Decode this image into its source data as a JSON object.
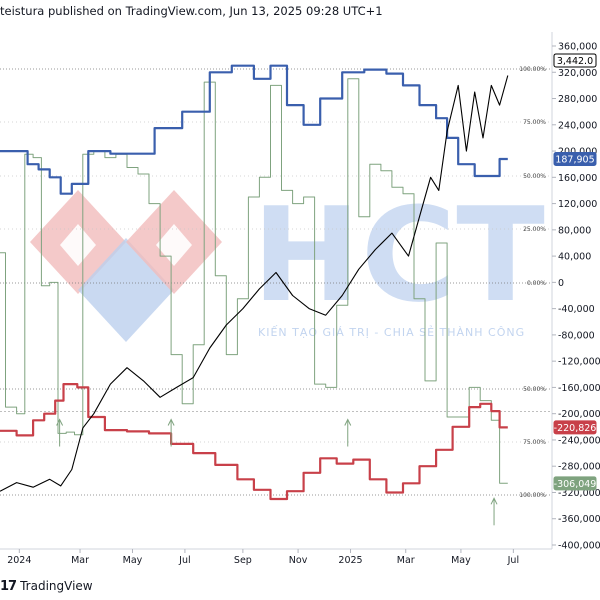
{
  "header": {
    "text": "teistura published on TradingView.com, Jun 13, 2025 09:28 UTC+1"
  },
  "footer": {
    "brand": "TradingView",
    "logo": "17"
  },
  "watermark": {
    "letters": "HCT",
    "slogan": "KIẾN TẠO GIÁ TRỊ - CHIA SẺ THÀNH CÔNG"
  },
  "colors": {
    "price": "#000000",
    "blue_oscillator": "#3a5fad",
    "red_oscillator": "#c84049",
    "green_oscillator": "#7fa37f",
    "watermark_blue": "#bcd0ee",
    "watermark_red": "#f1bcbc"
  },
  "chart_data": {
    "type": "line",
    "y_axis_ticks": [
      "360,000",
      "320,000",
      "280,000",
      "240,000",
      "200,000",
      "160,000",
      "120,000",
      "80,000",
      "40,000",
      "0",
      "-40,000",
      "-80,000",
      "-120,000",
      "-160,000",
      "-200,000",
      "-240,000",
      "-280,000",
      "-320,000",
      "-360,000",
      "-400,000"
    ],
    "y_range": [
      -400000,
      360000
    ],
    "x_axis_ticks": [
      "2024",
      "Mar",
      "May",
      "Jul",
      "Sep",
      "Nov",
      "2025",
      "Mar",
      "May",
      "Jul"
    ],
    "pane_levels": [
      {
        "pane": "upper",
        "levels": [
          "100.00%",
          "75.00%",
          "50.00%",
          "25.00%",
          "0.00%"
        ]
      },
      {
        "pane": "lower",
        "levels": [
          "50.00%",
          "75.00%",
          "100.00%"
        ]
      }
    ],
    "last_value_labels": [
      {
        "series": "price",
        "label": "3,442.0"
      },
      {
        "series": "blue",
        "label": "187,905"
      },
      {
        "series": "red",
        "label": "-220,826"
      },
      {
        "series": "green",
        "label": "-306,049"
      }
    ],
    "series": [
      {
        "id": "price",
        "points": [
          [
            0,
            -318000
          ],
          [
            0.03,
            -305000
          ],
          [
            0.06,
            -312000
          ],
          [
            0.09,
            -300000
          ],
          [
            0.11,
            -310000
          ],
          [
            0.13,
            -285000
          ],
          [
            0.15,
            -222000
          ],
          [
            0.17,
            -200000
          ],
          [
            0.2,
            -155000
          ],
          [
            0.23,
            -130000
          ],
          [
            0.26,
            -150000
          ],
          [
            0.29,
            -175000
          ],
          [
            0.32,
            -160000
          ],
          [
            0.35,
            -145000
          ],
          [
            0.38,
            -100000
          ],
          [
            0.41,
            -65000
          ],
          [
            0.44,
            -40000
          ],
          [
            0.47,
            -10000
          ],
          [
            0.5,
            15000
          ],
          [
            0.53,
            -20000
          ],
          [
            0.56,
            -40000
          ],
          [
            0.59,
            -50000
          ],
          [
            0.62,
            -20000
          ],
          [
            0.65,
            20000
          ],
          [
            0.68,
            50000
          ],
          [
            0.71,
            75000
          ],
          [
            0.74,
            40000
          ],
          [
            0.76,
            100000
          ],
          [
            0.78,
            160000
          ],
          [
            0.795,
            140000
          ],
          [
            0.81,
            230000
          ],
          [
            0.83,
            300000
          ],
          [
            0.845,
            200000
          ],
          [
            0.86,
            290000
          ],
          [
            0.875,
            220000
          ],
          [
            0.89,
            300000
          ],
          [
            0.905,
            270000
          ],
          [
            0.92,
            315000
          ]
        ]
      },
      {
        "id": "blue",
        "points": [
          [
            0,
            200000
          ],
          [
            0.03,
            200000
          ],
          [
            0.05,
            180000
          ],
          [
            0.07,
            172000
          ],
          [
            0.09,
            160000
          ],
          [
            0.11,
            135000
          ],
          [
            0.13,
            150000
          ],
          [
            0.16,
            200000
          ],
          [
            0.2,
            196000
          ],
          [
            0.24,
            196000
          ],
          [
            0.28,
            235000
          ],
          [
            0.33,
            260000
          ],
          [
            0.38,
            320000
          ],
          [
            0.42,
            330000
          ],
          [
            0.46,
            310000
          ],
          [
            0.49,
            330000
          ],
          [
            0.52,
            270000
          ],
          [
            0.55,
            240000
          ],
          [
            0.58,
            280000
          ],
          [
            0.62,
            320000
          ],
          [
            0.66,
            324000
          ],
          [
            0.7,
            318000
          ],
          [
            0.73,
            300000
          ],
          [
            0.76,
            270000
          ],
          [
            0.79,
            250000
          ],
          [
            0.81,
            220000
          ],
          [
            0.83,
            180000
          ],
          [
            0.86,
            162000
          ],
          [
            0.89,
            162000
          ],
          [
            0.905,
            187905
          ],
          [
            0.92,
            187905
          ]
        ]
      },
      {
        "id": "red",
        "points": [
          [
            0,
            -226000
          ],
          [
            0.03,
            -233000
          ],
          [
            0.06,
            -210000
          ],
          [
            0.08,
            -200000
          ],
          [
            0.1,
            -180000
          ],
          [
            0.115,
            -155000
          ],
          [
            0.14,
            -160000
          ],
          [
            0.16,
            -205000
          ],
          [
            0.19,
            -225000
          ],
          [
            0.23,
            -227000
          ],
          [
            0.27,
            -230000
          ],
          [
            0.31,
            -246000
          ],
          [
            0.35,
            -260000
          ],
          [
            0.39,
            -278000
          ],
          [
            0.43,
            -300000
          ],
          [
            0.46,
            -316000
          ],
          [
            0.49,
            -330000
          ],
          [
            0.52,
            -318000
          ],
          [
            0.55,
            -290000
          ],
          [
            0.58,
            -268000
          ],
          [
            0.61,
            -276000
          ],
          [
            0.64,
            -270000
          ],
          [
            0.67,
            -300000
          ],
          [
            0.7,
            -320000
          ],
          [
            0.73,
            -306000
          ],
          [
            0.76,
            -280000
          ],
          [
            0.79,
            -255000
          ],
          [
            0.82,
            -220000
          ],
          [
            0.85,
            -190000
          ],
          [
            0.87,
            -185000
          ],
          [
            0.89,
            -196000
          ],
          [
            0.905,
            -220826
          ],
          [
            0.92,
            -220826
          ]
        ]
      },
      {
        "id": "green",
        "points": [
          [
            0,
            45000
          ],
          [
            0.01,
            -190000
          ],
          [
            0.03,
            -200000
          ],
          [
            0.045,
            195000
          ],
          [
            0.06,
            190000
          ],
          [
            0.075,
            -5000
          ],
          [
            0.09,
            0
          ],
          [
            0.105,
            -230000
          ],
          [
            0.12,
            -228000
          ],
          [
            0.135,
            -232000
          ],
          [
            0.15,
            195000
          ],
          [
            0.17,
            200000
          ],
          [
            0.19,
            190000
          ],
          [
            0.21,
            195000
          ],
          [
            0.23,
            175000
          ],
          [
            0.25,
            165000
          ],
          [
            0.27,
            120000
          ],
          [
            0.29,
            40000
          ],
          [
            0.31,
            -110000
          ],
          [
            0.33,
            -185000
          ],
          [
            0.35,
            -95000
          ],
          [
            0.37,
            305000
          ],
          [
            0.39,
            10000
          ],
          [
            0.41,
            -110000
          ],
          [
            0.43,
            -25000
          ],
          [
            0.45,
            130000
          ],
          [
            0.47,
            160000
          ],
          [
            0.49,
            300000
          ],
          [
            0.51,
            140000
          ],
          [
            0.53,
            120000
          ],
          [
            0.55,
            130000
          ],
          [
            0.57,
            -155000
          ],
          [
            0.59,
            -160000
          ],
          [
            0.61,
            -35000
          ],
          [
            0.63,
            310000
          ],
          [
            0.65,
            100000
          ],
          [
            0.67,
            180000
          ],
          [
            0.69,
            170000
          ],
          [
            0.71,
            145000
          ],
          [
            0.73,
            135000
          ],
          [
            0.75,
            -25000
          ],
          [
            0.77,
            -150000
          ],
          [
            0.79,
            60000
          ],
          [
            0.81,
            -205000
          ],
          [
            0.83,
            -205000
          ],
          [
            0.85,
            -160000
          ],
          [
            0.87,
            -180000
          ],
          [
            0.89,
            -210000
          ],
          [
            0.905,
            -306049
          ],
          [
            0.92,
            -306049
          ]
        ]
      }
    ]
  }
}
